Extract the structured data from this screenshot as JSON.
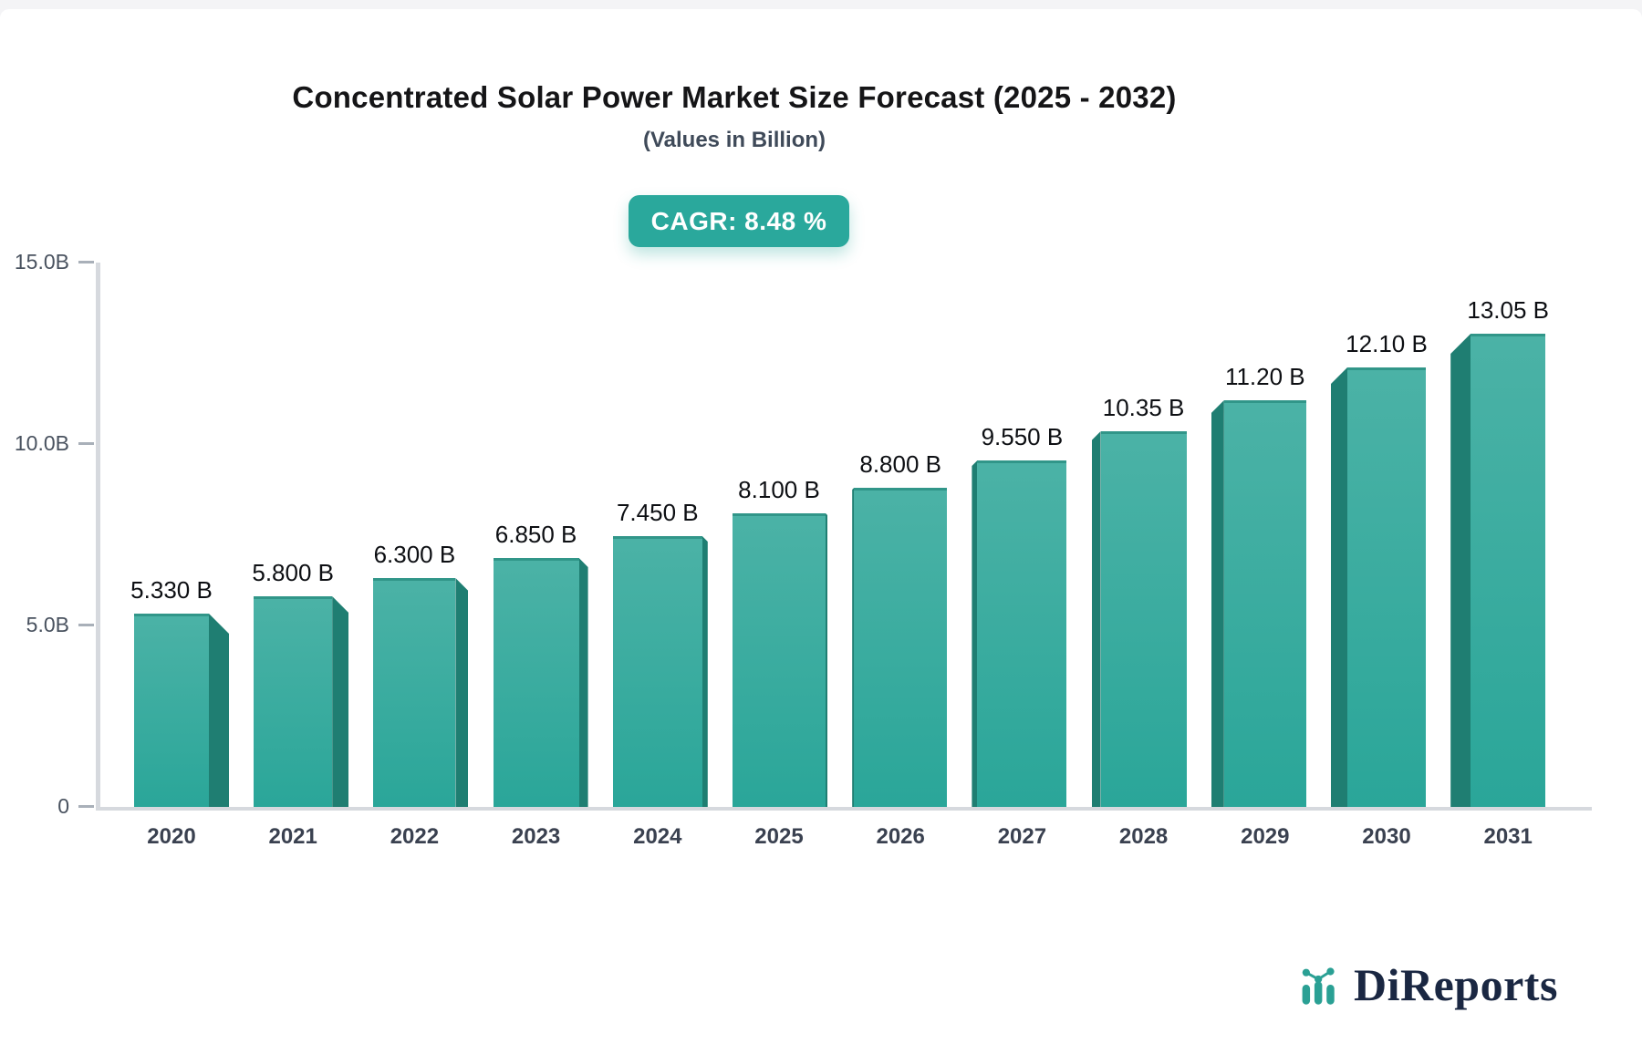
{
  "header": {
    "title": "Concentrated Solar Power Market Size Forecast (2025 - 2032)",
    "subtitle": "(Values in Billion)",
    "cagr_badge": "CAGR: 8.48 %"
  },
  "brand": {
    "name": "DiReports",
    "icon": "bar-chart-logo-icon"
  },
  "chart_data": {
    "type": "bar",
    "title": "Concentrated Solar Power Market Size Forecast (2025 - 2032)",
    "subtitle": "(Values in Billion)",
    "cagr": "8.48 %",
    "categories": [
      "2020",
      "2021",
      "2022",
      "2023",
      "2024",
      "2025",
      "2026",
      "2027",
      "2028",
      "2029",
      "2030",
      "2031"
    ],
    "values": [
      5.33,
      5.8,
      6.3,
      6.85,
      7.45,
      8.1,
      8.8,
      9.55,
      10.35,
      11.2,
      12.1,
      13.05
    ],
    "value_labels": [
      "5.330 B",
      "5.800 B",
      "6.300 B",
      "6.850 B",
      "7.450 B",
      "8.100 B",
      "8.800 B",
      "9.550 B",
      "10.35 B",
      "11.20 B",
      "12.10 B",
      "13.05 B"
    ],
    "unit_suffix": "B",
    "xlabel": "",
    "ylabel": "",
    "ylim": [
      0,
      15
    ],
    "yticks": [
      {
        "value": 15,
        "label": "15.0B"
      },
      {
        "value": 10,
        "label": "10.0B"
      },
      {
        "value": 5,
        "label": "5.0B"
      },
      {
        "value": 0,
        "label": "0"
      }
    ],
    "grid": false,
    "legend": "none",
    "colors": {
      "accent": "#2aa89c",
      "bar_top": "#4bb2a6",
      "bar_bottom": "#2aa699",
      "bar_side": "#1f7e72",
      "bar_edge": "#319689",
      "axis": "#d6d9de",
      "tick_dash": "#a9b0b9",
      "tick_label": "#49525f",
      "year_label": "#3a4150",
      "value_label": "#0d0f13",
      "brand_navy": "#1a2742",
      "brand_teal": "#2aa094"
    }
  }
}
